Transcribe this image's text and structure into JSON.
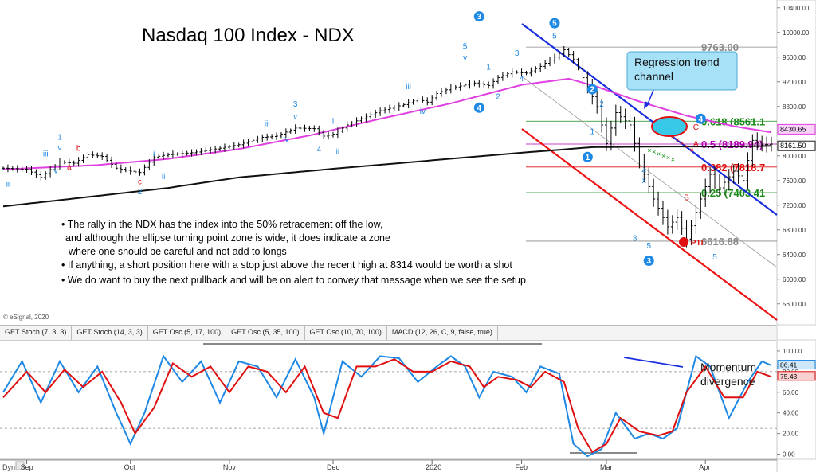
{
  "chart_data": [
    {
      "type": "line",
      "title": "Nasdaq 100 Index - NDX",
      "copyright": "© eSignal, 2020",
      "ylim": [
        5300,
        10500
      ],
      "y_ticks": [
        5600,
        6000,
        6400,
        6800,
        7200,
        7600,
        8000,
        8400,
        8800,
        9200,
        9600,
        10000,
        10400
      ],
      "y_tick_labels": [
        "5600.00",
        "6000.00",
        "6400.00",
        "6800.00",
        "7200.00",
        "7600.00",
        "8000.00",
        "8400.00",
        "8800.00",
        "9200.00",
        "9600.00",
        "10000.00",
        "10400.00"
      ],
      "x_labels": [
        "Sep",
        "Oct",
        "Nov",
        "Dec",
        "2020",
        "Feb",
        "Mar",
        "Apr"
      ],
      "x_label_index": [
        5,
        27,
        48,
        70,
        91,
        110,
        128,
        149
      ],
      "n_bars": 164,
      "price_anchors": [
        [
          0,
          7800
        ],
        [
          5,
          7780
        ],
        [
          8,
          7650
        ],
        [
          12,
          7900
        ],
        [
          15,
          7880
        ],
        [
          18,
          8020
        ],
        [
          21,
          7990
        ],
        [
          24,
          7800
        ],
        [
          27,
          7750
        ],
        [
          29,
          7730
        ],
        [
          32,
          7980
        ],
        [
          35,
          8020
        ],
        [
          40,
          8050
        ],
        [
          45,
          8110
        ],
        [
          50,
          8180
        ],
        [
          55,
          8300
        ],
        [
          58,
          8320
        ],
        [
          62,
          8450
        ],
        [
          66,
          8440
        ],
        [
          68,
          8320
        ],
        [
          70,
          8350
        ],
        [
          73,
          8500
        ],
        [
          76,
          8600
        ],
        [
          80,
          8730
        ],
        [
          85,
          8830
        ],
        [
          88,
          8920
        ],
        [
          90,
          8870
        ],
        [
          92,
          9010
        ],
        [
          95,
          9100
        ],
        [
          100,
          9180
        ],
        [
          103,
          9140
        ],
        [
          105,
          9270
        ],
        [
          108,
          9360
        ],
        [
          111,
          9340
        ],
        [
          114,
          9450
        ],
        [
          117,
          9600
        ],
        [
          119,
          9720
        ],
        [
          121,
          9560
        ],
        [
          124,
          9120
        ],
        [
          126,
          8800
        ],
        [
          128,
          8200
        ],
        [
          130,
          8700
        ],
        [
          133,
          8500
        ],
        [
          135,
          7900
        ],
        [
          138,
          7300
        ],
        [
          141,
          6850
        ],
        [
          143,
          7000
        ],
        [
          145,
          6650
        ],
        [
          148,
          7300
        ],
        [
          150,
          7700
        ],
        [
          152,
          7480
        ],
        [
          155,
          7750
        ],
        [
          157,
          7600
        ],
        [
          159,
          8250
        ],
        [
          161,
          8180
        ],
        [
          163,
          8190
        ]
      ],
      "ma_magenta_anchors": [
        [
          0,
          7780
        ],
        [
          20,
          7850
        ],
        [
          35,
          7950
        ],
        [
          50,
          8110
        ],
        [
          65,
          8330
        ],
        [
          80,
          8600
        ],
        [
          95,
          8850
        ],
        [
          110,
          9150
        ],
        [
          120,
          9250
        ],
        [
          126,
          9120
        ],
        [
          135,
          8880
        ],
        [
          145,
          8650
        ],
        [
          155,
          8480
        ],
        [
          163,
          8380
        ]
      ],
      "ma_black_anchors": [
        [
          0,
          7180
        ],
        [
          20,
          7350
        ],
        [
          35,
          7480
        ],
        [
          50,
          7650
        ],
        [
          70,
          7790
        ],
        [
          90,
          7920
        ],
        [
          110,
          8050
        ],
        [
          125,
          8140
        ],
        [
          140,
          8150
        ],
        [
          155,
          8150
        ],
        [
          163,
          8160
        ]
      ],
      "series": [
        {
          "name": "GET Stoch (7, 3, 3)",
          "role": "price_bars"
        },
        {
          "name": "",
          "role": "magenta_ma"
        },
        {
          "name": "",
          "role": "black_ma"
        }
      ],
      "fib_levels": [
        {
          "label": "9763.00",
          "value": 9763,
          "color": "#888888"
        },
        {
          "label": "0.618 (8561.1",
          "value": 8561.1,
          "color": "#1a8a1a"
        },
        {
          "label": "0.5 (8189.94)",
          "value": 8189.94,
          "color": "#b000b0"
        },
        {
          "label": "0.382 (7818.7",
          "value": 7818.7,
          "color": "#e01010"
        },
        {
          "label": "0.25 (7403.41",
          "value": 7403.41,
          "color": "#1a8a1a"
        },
        {
          "label": "6616.88",
          "value": 6616.88,
          "color": "#888888"
        }
      ],
      "price_tags": [
        {
          "label": "8430.65",
          "value": 8430.65,
          "color": "#e040e0"
        },
        {
          "label": "8161.50",
          "value": 8161.5,
          "color": "#222222"
        }
      ],
      "annotations": {
        "callout": "Regression trend channel",
        "bullets": [
          "• The rally in the NDX has the index into the 50% retracement off the low,",
          "and although the ellipse turning point zone is wide, it does indicate a zone",
          "where one should be careful and not add to longs",
          "• If anything, a short position here with a stop just above the recent high at 8314 would be worth a shot",
          "• We do want to buy the next pullback and will be on alert to convey that message when we see the setup"
        ],
        "pti": "27 PTI",
        "wave_labels": [
          {
            "t": "ii",
            "i": 1,
            "v": 7500,
            "c": "#1e88e5"
          },
          {
            "t": "iii",
            "i": 9,
            "v": 7990,
            "c": "#1e88e5"
          },
          {
            "t": "1",
            "i": 12,
            "v": 8260,
            "c": "#1e88e5"
          },
          {
            "t": "v",
            "i": 12,
            "v": 8090,
            "c": "#1e88e5"
          },
          {
            "t": "iv",
            "i": 11,
            "v": 7720,
            "c": "#1e88e5"
          },
          {
            "t": "b",
            "i": 16,
            "v": 8080,
            "c": "#e01010"
          },
          {
            "t": "a",
            "i": 14,
            "v": 7780,
            "c": "#e01010"
          },
          {
            "t": "c",
            "i": 29,
            "v": 7540,
            "c": "#e01010"
          },
          {
            "t": "2",
            "i": 29,
            "v": 7380,
            "c": "#1e88e5"
          },
          {
            "t": "i",
            "i": 32,
            "v": 8000,
            "c": "#1e88e5"
          },
          {
            "t": "ii",
            "i": 34,
            "v": 7620,
            "c": "#1e88e5"
          },
          {
            "t": "iii",
            "i": 56,
            "v": 8480,
            "c": "#1e88e5"
          },
          {
            "t": "3",
            "i": 62,
            "v": 8800,
            "c": "#1e88e5"
          },
          {
            "t": "v",
            "i": 62,
            "v": 8600,
            "c": "#1e88e5"
          },
          {
            "t": "iv",
            "i": 60,
            "v": 8230,
            "c": "#1e88e5"
          },
          {
            "t": "i",
            "i": 70,
            "v": 8520,
            "c": "#1e88e5"
          },
          {
            "t": "ii",
            "i": 71,
            "v": 8020,
            "c": "#1e88e5"
          },
          {
            "t": "4",
            "i": 67,
            "v": 8060,
            "c": "#1e88e5"
          },
          {
            "t": "iii",
            "i": 86,
            "v": 9080,
            "c": "#1e88e5"
          },
          {
            "t": "iv",
            "i": 89,
            "v": 8680,
            "c": "#1e88e5"
          },
          {
            "t": "5",
            "i": 98,
            "v": 9730,
            "c": "#1e88e5"
          },
          {
            "t": "v",
            "i": 98,
            "v": 9550,
            "c": "#1e88e5"
          },
          {
            "t": "1",
            "i": 103,
            "v": 9400,
            "c": "#1e88e5"
          },
          {
            "t": "2",
            "i": 105,
            "v": 8920,
            "c": "#1e88e5"
          },
          {
            "t": "3",
            "i": 109,
            "v": 9620,
            "c": "#1e88e5"
          },
          {
            "t": "4",
            "i": 110,
            "v": 9210,
            "c": "#1e88e5"
          },
          {
            "t": "5",
            "i": 117,
            "v": 9900,
            "c": "#1e88e5"
          },
          {
            "t": "1",
            "i": 125,
            "v": 8350,
            "c": "#1e88e5"
          },
          {
            "t": "2",
            "i": 127,
            "v": 8800,
            "c": "#1e88e5"
          },
          {
            "t": "3",
            "i": 134,
            "v": 6620,
            "c": "#1e88e5"
          },
          {
            "t": "4",
            "i": 136,
            "v": 7720,
            "c": "#1e88e5"
          },
          {
            "t": "5",
            "i": 137,
            "v": 6500,
            "c": "#1e88e5"
          },
          {
            "t": "x",
            "i": 136,
            "v": 7560,
            "c": "#1e88e5"
          },
          {
            "t": "A",
            "i": 147,
            "v": 8150,
            "c": "#e01010"
          },
          {
            "t": "B",
            "i": 145,
            "v": 7280,
            "c": "#e01010"
          },
          {
            "t": "C",
            "i": 147,
            "v": 8420,
            "c": "#e01010"
          },
          {
            "t": "5",
            "i": 151,
            "v": 6320,
            "c": "#1e88e5"
          }
        ],
        "circle_labels": [
          {
            "t": "3",
            "i": 101,
            "v": 10260
          },
          {
            "t": "4",
            "i": 101,
            "v": 8780
          },
          {
            "t": "5",
            "i": 117,
            "v": 10150
          },
          {
            "t": "2",
            "i": 125,
            "v": 9080
          },
          {
            "t": "1",
            "i": 124,
            "v": 7980
          },
          {
            "t": "4",
            "i": 148,
            "v": 8600
          },
          {
            "t": "3",
            "i": 137,
            "v": 6300
          }
        ]
      }
    },
    {
      "type": "line",
      "ylim": [
        -5,
        110
      ],
      "y_ticks": [
        0,
        20,
        40,
        60,
        80,
        100
      ],
      "y_tick_labels": [
        "0.00",
        "20.00",
        "40.00",
        "60.00",
        "80.00",
        "100.00"
      ],
      "ref_levels": [
        80,
        25
      ],
      "annotation": "Momentum divergence",
      "last_values": [
        {
          "label": "86.41",
          "color": "#1e88e5"
        },
        {
          "label": "75.43",
          "color": "#e01010"
        }
      ],
      "series": [
        {
          "name": "",
          "color": "#1e88e5",
          "values_anchor": [
            [
              0,
              60
            ],
            [
              4,
              90
            ],
            [
              8,
              50
            ],
            [
              12,
              90
            ],
            [
              16,
              60
            ],
            [
              20,
              85
            ],
            [
              24,
              40
            ],
            [
              27,
              10
            ],
            [
              30,
              40
            ],
            [
              34,
              95
            ],
            [
              38,
              70
            ],
            [
              42,
              90
            ],
            [
              46,
              50
            ],
            [
              50,
              90
            ],
            [
              54,
              85
            ],
            [
              58,
              55
            ],
            [
              62,
              92
            ],
            [
              66,
              55
            ],
            [
              68,
              20
            ],
            [
              72,
              90
            ],
            [
              76,
              75
            ],
            [
              80,
              95
            ],
            [
              84,
              93
            ],
            [
              88,
              70
            ],
            [
              92,
              85
            ],
            [
              95,
              95
            ],
            [
              98,
              85
            ],
            [
              101,
              55
            ],
            [
              104,
              80
            ],
            [
              108,
              75
            ],
            [
              111,
              60
            ],
            [
              114,
              85
            ],
            [
              118,
              78
            ],
            [
              121,
              10
            ],
            [
              124,
              -2
            ],
            [
              127,
              5
            ],
            [
              130,
              40
            ],
            [
              134,
              15
            ],
            [
              137,
              20
            ],
            [
              140,
              15
            ],
            [
              143,
              25
            ],
            [
              147,
              95
            ],
            [
              150,
              85
            ],
            [
              154,
              35
            ],
            [
              158,
              70
            ],
            [
              161,
              90
            ],
            [
              163,
              86
            ]
          ]
        },
        {
          "name": "",
          "color": "#e01010",
          "values_anchor": [
            [
              0,
              55
            ],
            [
              5,
              80
            ],
            [
              9,
              60
            ],
            [
              13,
              82
            ],
            [
              17,
              65
            ],
            [
              21,
              80
            ],
            [
              25,
              50
            ],
            [
              28,
              20
            ],
            [
              32,
              45
            ],
            [
              36,
              88
            ],
            [
              40,
              75
            ],
            [
              44,
              85
            ],
            [
              48,
              60
            ],
            [
              52,
              85
            ],
            [
              56,
              80
            ],
            [
              60,
              60
            ],
            [
              64,
              85
            ],
            [
              68,
              40
            ],
            [
              71,
              35
            ],
            [
              75,
              85
            ],
            [
              79,
              85
            ],
            [
              83,
              92
            ],
            [
              87,
              80
            ],
            [
              91,
              80
            ],
            [
              95,
              90
            ],
            [
              99,
              85
            ],
            [
              102,
              65
            ],
            [
              105,
              75
            ],
            [
              109,
              72
            ],
            [
              112,
              65
            ],
            [
              115,
              80
            ],
            [
              119,
              70
            ],
            [
              122,
              25
            ],
            [
              125,
              2
            ],
            [
              128,
              10
            ],
            [
              131,
              35
            ],
            [
              135,
              22
            ],
            [
              139,
              18
            ],
            [
              142,
              22
            ],
            [
              145,
              60
            ],
            [
              149,
              85
            ],
            [
              153,
              55
            ],
            [
              157,
              55
            ],
            [
              160,
              80
            ],
            [
              163,
              75
            ]
          ]
        }
      ]
    }
  ],
  "indicator_tabs": [
    "GET Stoch (7, 3, 3)",
    "GET Stoch (14, 3, 3)",
    "GET Osc (5, 17, 100)",
    "GET Osc (5, 35, 100)",
    "GET Osc (10, 70, 100)",
    "MACD (12, 26, C, 9, false, true)"
  ],
  "footer": {
    "left_label": "Dyn"
  },
  "colors": {
    "ma_magenta": "#e040e0",
    "ma_black": "#111111",
    "channel_blue": "#1a2ee0",
    "channel_red": "#ee1111",
    "wave_blue": "#1e88e5",
    "callout_bg": "#a6e1f7",
    "ellipse": "#39c9e8"
  }
}
